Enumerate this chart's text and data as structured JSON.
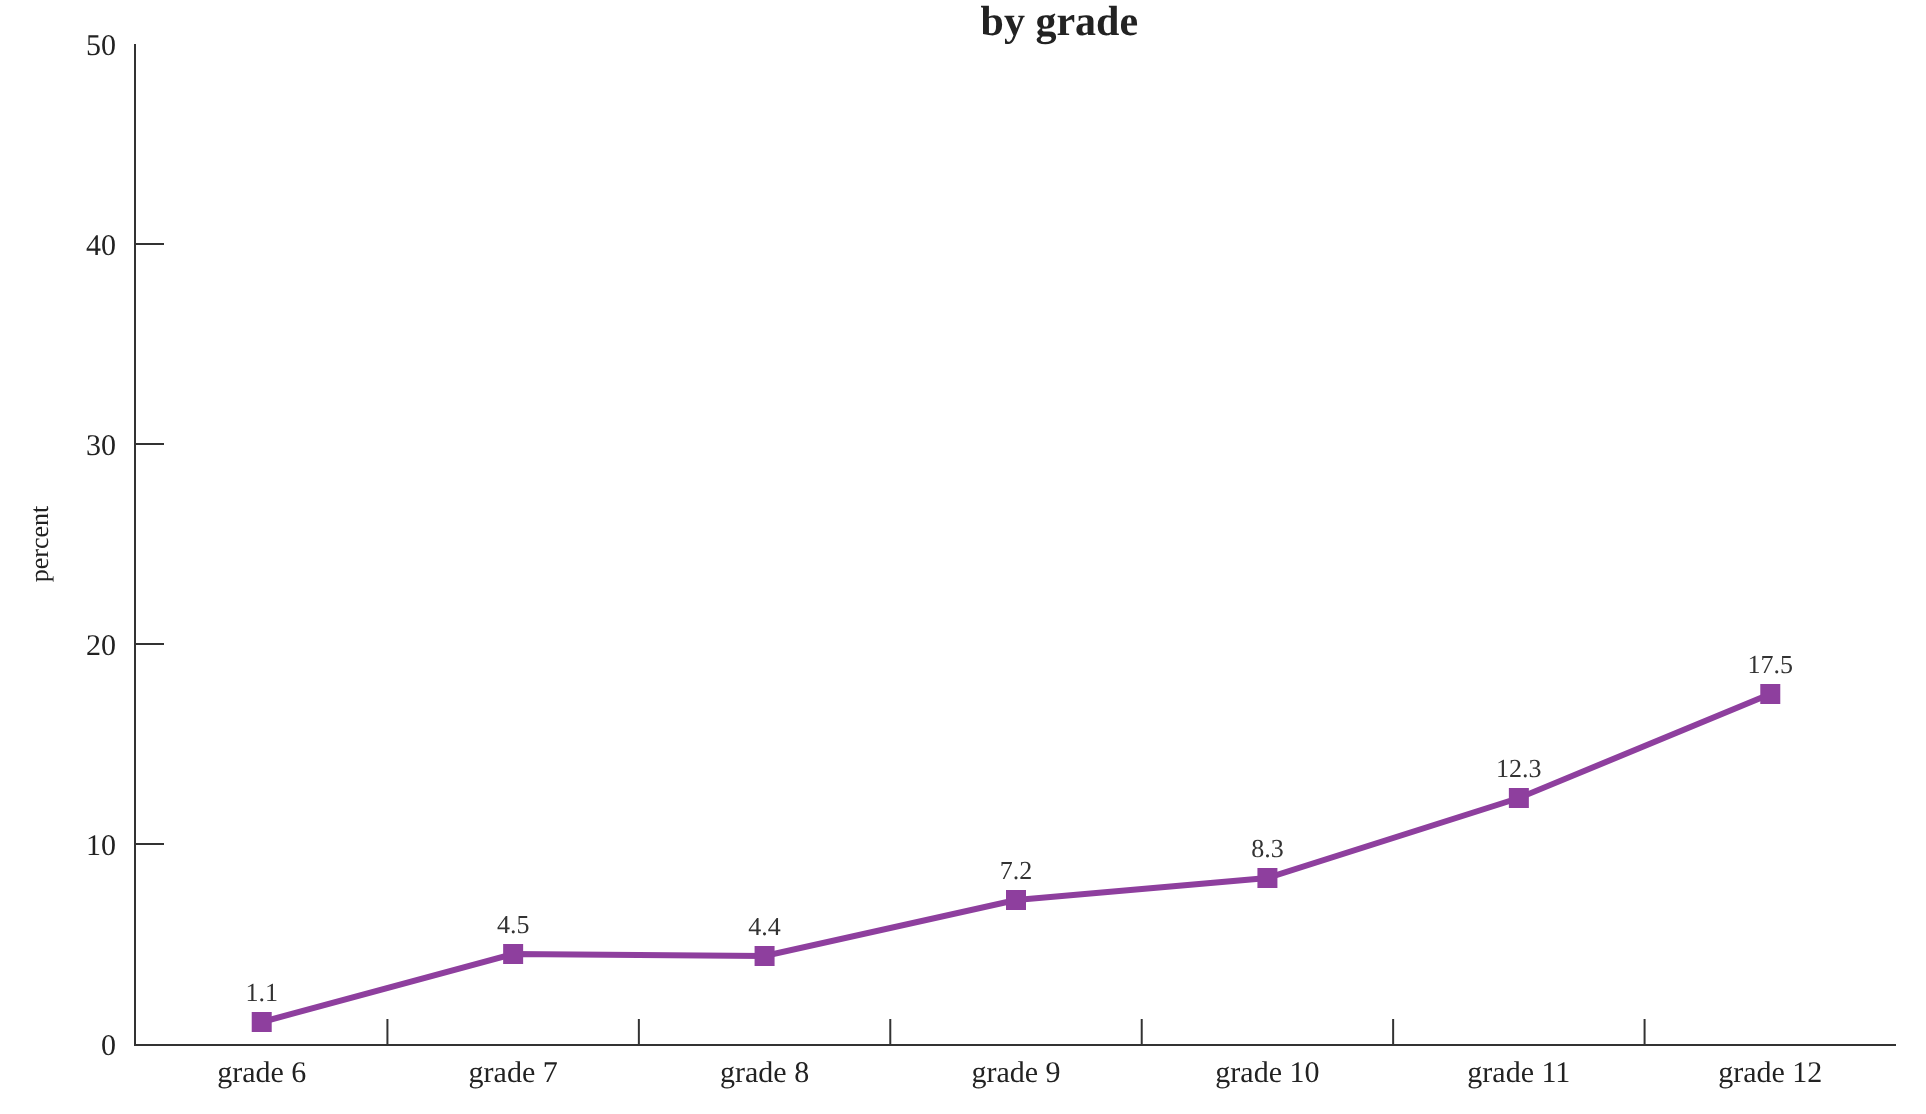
{
  "chart_data": {
    "type": "line",
    "title": "by grade",
    "ylabel": "percent",
    "categories": [
      "grade 6",
      "grade 7",
      "grade 8",
      "grade 9",
      "grade 10",
      "grade 11",
      "grade 12"
    ],
    "series": [
      {
        "color": "#8e3f9e",
        "values": [
          1.1,
          4.5,
          4.4,
          7.2,
          8.3,
          12.3,
          17.5
        ]
      }
    ],
    "ylim": [
      0,
      50
    ],
    "yticks": [
      0,
      10,
      20,
      30,
      40,
      50
    ],
    "data_labels": true,
    "legend": false,
    "marker": "square",
    "line_style": "solid"
  }
}
